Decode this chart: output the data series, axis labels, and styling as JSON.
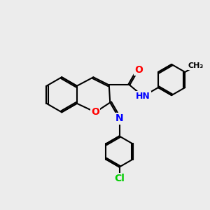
{
  "bg_color": "#ececec",
  "bond_color": "#000000",
  "bond_width": 1.5,
  "atom_colors": {
    "O": "#ff0000",
    "N": "#0000ff",
    "Cl": "#00cc00",
    "H": "#666666",
    "C": "#000000"
  },
  "font_size": 10
}
